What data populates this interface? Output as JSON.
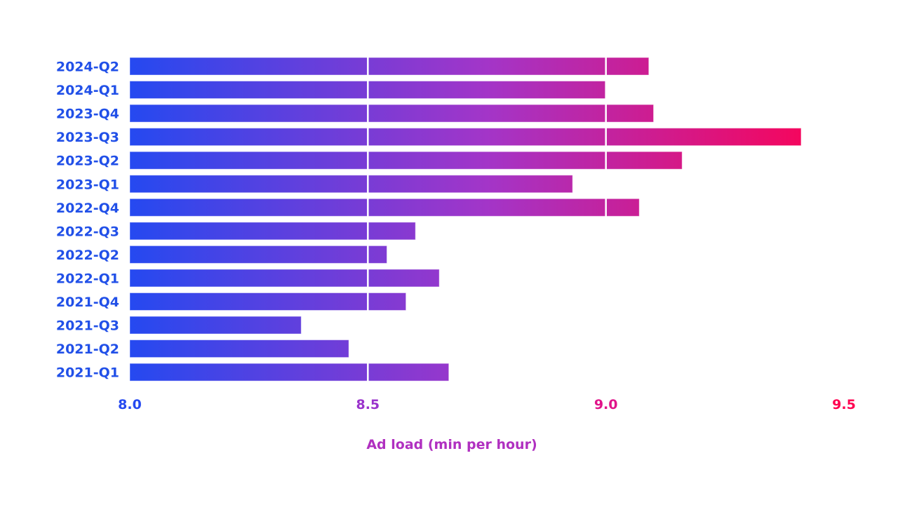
{
  "chart_data": {
    "type": "bar",
    "orientation": "horizontal",
    "title": "",
    "xlabel": "Ad load (min per hour)",
    "ylabel": "",
    "xlim": [
      8.0,
      9.5
    ],
    "xticks": [
      8.0,
      8.5,
      9.0,
      9.5
    ],
    "xtick_labels": [
      "8.0",
      "8.5",
      "9.0",
      "9.5"
    ],
    "grid": "vertical lines at 8.5 and 9.0 (white, over bars)",
    "legend": "none",
    "categories": [
      "2024-Q2",
      "2024-Q1",
      "2023-Q4",
      "2023-Q3",
      "2023-Q2",
      "2023-Q1",
      "2022-Q4",
      "2022-Q3",
      "2022-Q2",
      "2022-Q1",
      "2021-Q4",
      "2021-Q3",
      "2021-Q2",
      "2021-Q1"
    ],
    "values": [
      9.09,
      9.0,
      9.1,
      9.41,
      9.16,
      8.93,
      9.07,
      8.6,
      8.54,
      8.65,
      8.58,
      8.36,
      8.46,
      8.67
    ],
    "colors": {
      "gradient_start": "#2549f0",
      "gradient_mid": "#a335c8",
      "gradient_end": "#ff0050",
      "category_label": "#2150e8",
      "axis_title": "#b030c0"
    }
  }
}
